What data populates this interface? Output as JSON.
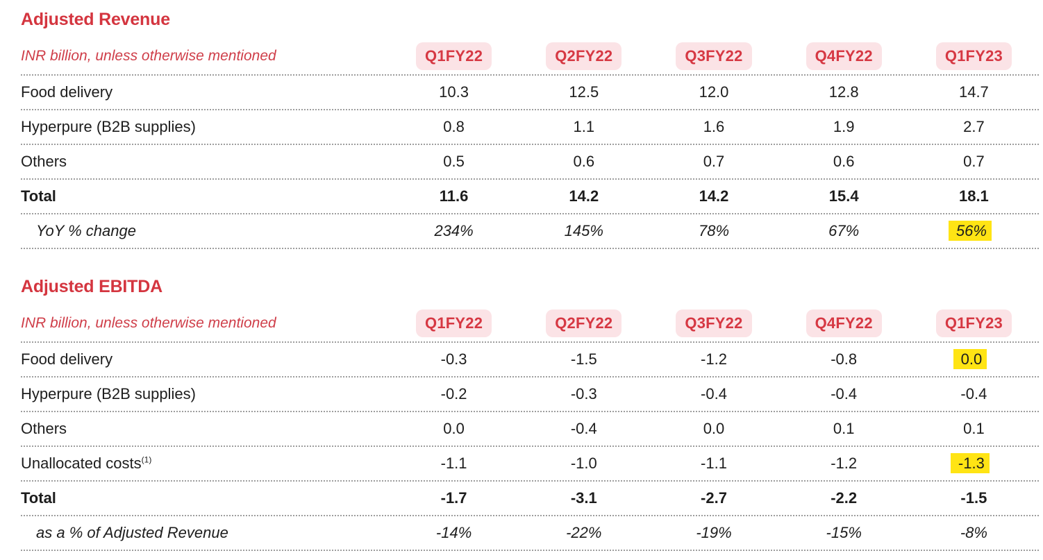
{
  "colors": {
    "accent_red": "#d63843",
    "title_red": "#d4353f",
    "badge_background": "#fbe3e6",
    "highlight_yellow": "#ffe414",
    "body_text": "#1d1d1d",
    "divider_dotted": "#9d9d9d",
    "page_background": "#ffffff"
  },
  "chart_data": [
    {
      "type": "table",
      "title": "Adjusted Revenue",
      "unit_note": "INR billion, unless otherwise mentioned",
      "columns": [
        "Q1FY22",
        "Q2FY22",
        "Q3FY22",
        "Q4FY22",
        "Q1FY23"
      ],
      "rows": [
        {
          "label": "Food delivery",
          "style": "normal",
          "values": [
            "10.3",
            "12.5",
            "12.0",
            "12.8",
            "14.7"
          ]
        },
        {
          "label": "Hyperpure (B2B supplies)",
          "style": "normal",
          "values": [
            "0.8",
            "1.1",
            "1.6",
            "1.9",
            "2.7"
          ]
        },
        {
          "label": "Others",
          "style": "normal",
          "values": [
            "0.5",
            "0.6",
            "0.7",
            "0.6",
            "0.7"
          ]
        },
        {
          "label": "Total",
          "style": "total",
          "values": [
            "11.6",
            "14.2",
            "14.2",
            "15.4",
            "18.1"
          ]
        },
        {
          "label": "YoY % change",
          "style": "subrow",
          "values": [
            "234%",
            "145%",
            "78%",
            "67%",
            "56%"
          ],
          "highlight_cols": [
            4
          ]
        }
      ]
    },
    {
      "type": "table",
      "title": "Adjusted EBITDA",
      "unit_note": "INR billion, unless otherwise mentioned",
      "columns": [
        "Q1FY22",
        "Q2FY22",
        "Q3FY22",
        "Q4FY22",
        "Q1FY23"
      ],
      "rows": [
        {
          "label": "Food delivery",
          "style": "normal",
          "values": [
            "-0.3",
            "-1.5",
            "-1.2",
            "-0.8",
            "0.0"
          ],
          "highlight_cols": [
            4
          ]
        },
        {
          "label": "Hyperpure (B2B supplies)",
          "style": "normal",
          "values": [
            "-0.2",
            "-0.3",
            "-0.4",
            "-0.4",
            "-0.4"
          ]
        },
        {
          "label": "Others",
          "style": "normal",
          "values": [
            "0.0",
            "-0.4",
            "0.0",
            "0.1",
            "0.1"
          ]
        },
        {
          "label": "Unallocated costs",
          "sup": "(1)",
          "style": "normal",
          "values": [
            "-1.1",
            "-1.0",
            "-1.1",
            "-1.2",
            "-1.3"
          ],
          "highlight_cols": [
            4
          ]
        },
        {
          "label": "Total",
          "style": "total",
          "values": [
            "-1.7",
            "-3.1",
            "-2.7",
            "-2.2",
            "-1.5"
          ]
        },
        {
          "label": "as a % of Adjusted Revenue",
          "style": "subrow",
          "values": [
            "-14%",
            "-22%",
            "-19%",
            "-15%",
            "-8%"
          ]
        }
      ]
    }
  ]
}
